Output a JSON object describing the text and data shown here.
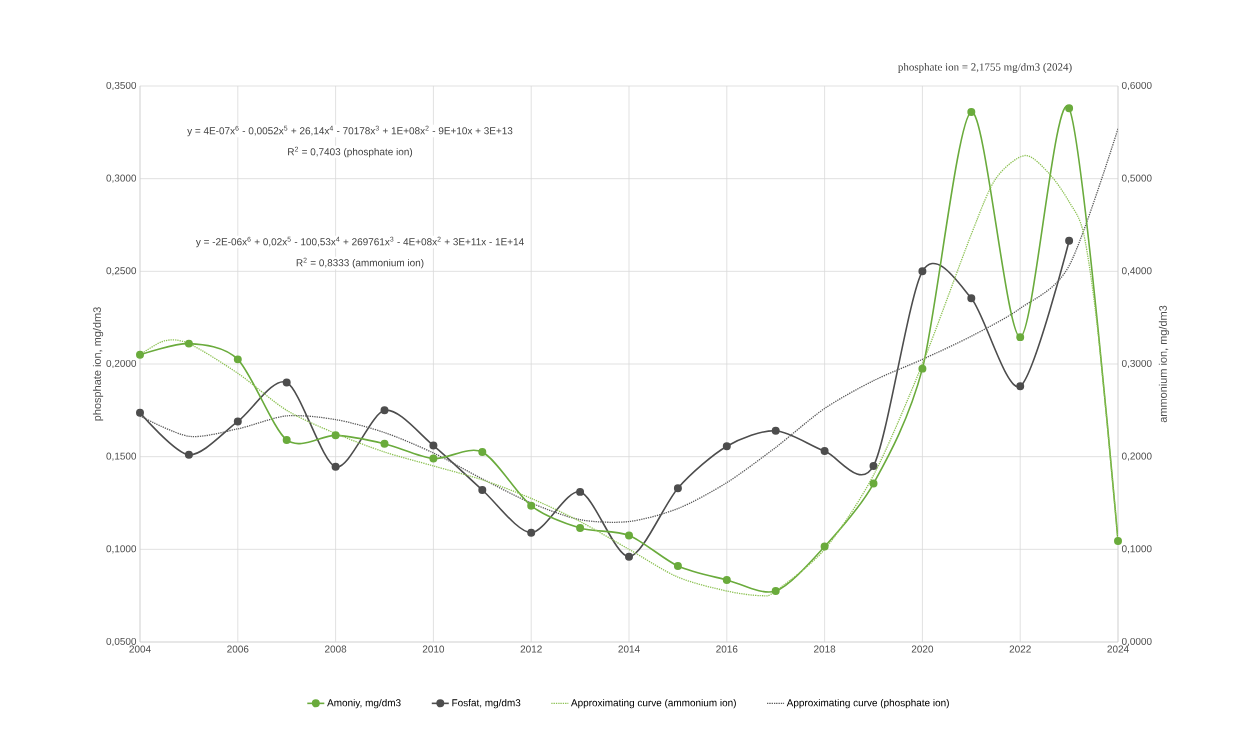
{
  "chart_data": {
    "type": "line",
    "x": [
      2004,
      2005,
      2006,
      2007,
      2008,
      2009,
      2010,
      2011,
      2012,
      2013,
      2014,
      2015,
      2016,
      2017,
      2018,
      2019,
      2020,
      2021,
      2022,
      2023,
      2024
    ],
    "series": [
      {
        "name": "Amoniy, mg/dm3",
        "color": "#6aab3c",
        "axis": "y2",
        "marker": "circle",
        "line_style": "solid",
        "values": [
          0.31,
          0.322,
          0.305,
          0.218,
          0.223,
          0.214,
          0.198,
          0.205,
          0.147,
          0.123,
          0.115,
          0.082,
          0.067,
          0.055,
          0.103,
          0.171,
          0.295,
          0.572,
          0.329,
          0.576,
          0.109
        ]
      },
      {
        "name": "Fosfat, mg/dm3",
        "color": "#4d4d4d",
        "axis": "y",
        "marker": "circle",
        "line_style": "solid",
        "values": [
          0.1737,
          0.151,
          0.169,
          0.19,
          0.1445,
          0.175,
          0.156,
          0.132,
          0.109,
          0.131,
          0.096,
          0.133,
          0.1556,
          0.164,
          0.153,
          0.145,
          0.25,
          0.2355,
          0.188,
          0.2665,
          null
        ]
      },
      {
        "name": "Approximating curve (ammonium ion)",
        "color": "#8cc152",
        "axis": "y2",
        "marker": "none",
        "line_style": "dotted",
        "x": [
          2004,
          2004.5,
          2005,
          2006,
          2007,
          2008,
          2009,
          2010,
          2011,
          2012,
          2013,
          2014,
          2015,
          2016,
          2016.7,
          2017,
          2018,
          2019,
          2020,
          2021,
          2021.5,
          2022.1,
          2022.6,
          2023,
          2023.3,
          2023.6,
          2024
        ],
        "values": [
          0.31,
          0.325,
          0.322,
          0.29,
          0.25,
          0.225,
          0.205,
          0.19,
          0.175,
          0.155,
          0.13,
          0.1,
          0.07,
          0.055,
          0.05,
          0.055,
          0.1,
          0.18,
          0.3,
          0.44,
          0.5,
          0.525,
          0.505,
          0.475,
          0.44,
          0.33,
          0.11
        ]
      },
      {
        "name": "Approximating curve (phosphate ion)",
        "color": "#595959",
        "axis": "y",
        "marker": "none",
        "line_style": "dotted",
        "x": [
          2004,
          2005,
          2006,
          2007,
          2008,
          2009,
          2010,
          2011,
          2012,
          2013,
          2014,
          2015,
          2016,
          2017,
          2018,
          2019,
          2020,
          2021,
          2022,
          2023,
          2024
        ],
        "values": [
          0.172,
          0.161,
          0.165,
          0.172,
          0.17,
          0.163,
          0.152,
          0.138,
          0.125,
          0.116,
          0.115,
          0.122,
          0.136,
          0.155,
          0.176,
          0.191,
          0.2025,
          0.215,
          0.23,
          0.253,
          0.327
        ]
      }
    ],
    "xlim": [
      2004,
      2024
    ],
    "xticks": [
      2004,
      2006,
      2008,
      2010,
      2012,
      2014,
      2016,
      2018,
      2020,
      2022,
      2024
    ],
    "ylim": [
      0.05,
      0.35
    ],
    "yticks": [
      {
        "value": 0.05,
        "label": "0,0500"
      },
      {
        "value": 0.1,
        "label": "0,1000"
      },
      {
        "value": 0.15,
        "label": "0,1500"
      },
      {
        "value": 0.2,
        "label": "0,2000"
      },
      {
        "value": 0.25,
        "label": "0,2500"
      },
      {
        "value": 0.3,
        "label": "0,3000"
      },
      {
        "value": 0.35,
        "label": "0,3500"
      }
    ],
    "y2lim": [
      0,
      0.6
    ],
    "y2ticks": [
      {
        "value": 0,
        "label": "0,0000"
      },
      {
        "value": 0.1,
        "label": "0,1000"
      },
      {
        "value": 0.2,
        "label": "0,2000"
      },
      {
        "value": 0.3,
        "label": "0,3000"
      },
      {
        "value": 0.4,
        "label": "0,4000"
      },
      {
        "value": 0.5,
        "label": "0,5000"
      },
      {
        "value": 0.6,
        "label": "0,6000"
      }
    ],
    "ylabel": "phosphate ion, mg/dm3",
    "y2label": "ammonium ion, mg/dm3",
    "grid": true,
    "legend": "bottom",
    "annotations": [
      "y = 4E-07x$^{6}$ - 0,0052x$^{5}$ + 26,14x$^{4}$ - 70178x$^{3}$ + 1E+08x$^{2}$ - 9E+10x + 3E+13",
      "R$^{2}$ = 0,7403 (phosphate ion)",
      "y = -2E-06x$^{6}$ + 0,02x$^{5}$ - 100,53x$^{4}$ + 269761x$^{3}$ - 4E+08x$^{2}$ + 3E+11x - 1E+14",
      "R$^{2}$ = 0,8333 (ammonium ion)",
      "phosphate ion = 2,1755 mg/dm3 (2024)"
    ]
  }
}
